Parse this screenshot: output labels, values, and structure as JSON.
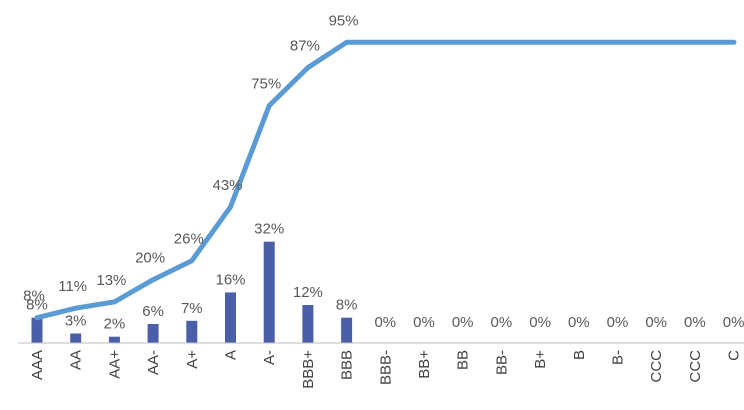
{
  "chart_data": {
    "type": "bar",
    "title": "",
    "xlabel": "",
    "ylabel": "",
    "categories": [
      "AAA",
      "AA",
      "AA+",
      "AA-",
      "A+",
      "A",
      "A-",
      "BBB+",
      "BBB",
      "BBB-",
      "BB+",
      "BB",
      "BB-",
      "B+",
      "B",
      "B-",
      "CCC",
      "CCC",
      "C"
    ],
    "series": [
      {
        "type": "bar",
        "values": [
          8,
          3,
          2,
          6,
          7,
          16,
          32,
          12,
          8,
          0,
          0,
          0,
          0,
          0,
          0,
          0,
          0,
          0,
          0
        ],
        "value_labels": [
          "8%",
          "3%",
          "2%",
          "6%",
          "7%",
          "16%",
          "32%",
          "12%",
          "8%",
          "0%",
          "0%",
          "0%",
          "0%",
          "0%",
          "0%",
          "0%",
          "0%",
          "0%",
          "0%"
        ],
        "color": "#4b5fa8"
      },
      {
        "type": "line",
        "values": [
          8,
          11,
          13,
          20,
          26,
          43,
          75,
          87,
          95,
          95,
          95,
          95,
          95,
          95,
          95,
          95,
          95,
          95,
          95
        ],
        "value_labels": [
          "8%",
          "11%",
          "13%",
          "20%",
          "26%",
          "43%",
          "75%",
          "87%",
          "95%"
        ],
        "color": "#5b9bd5"
      }
    ],
    "ylim": [
      0,
      100
    ],
    "grid": false,
    "legend": "none"
  }
}
